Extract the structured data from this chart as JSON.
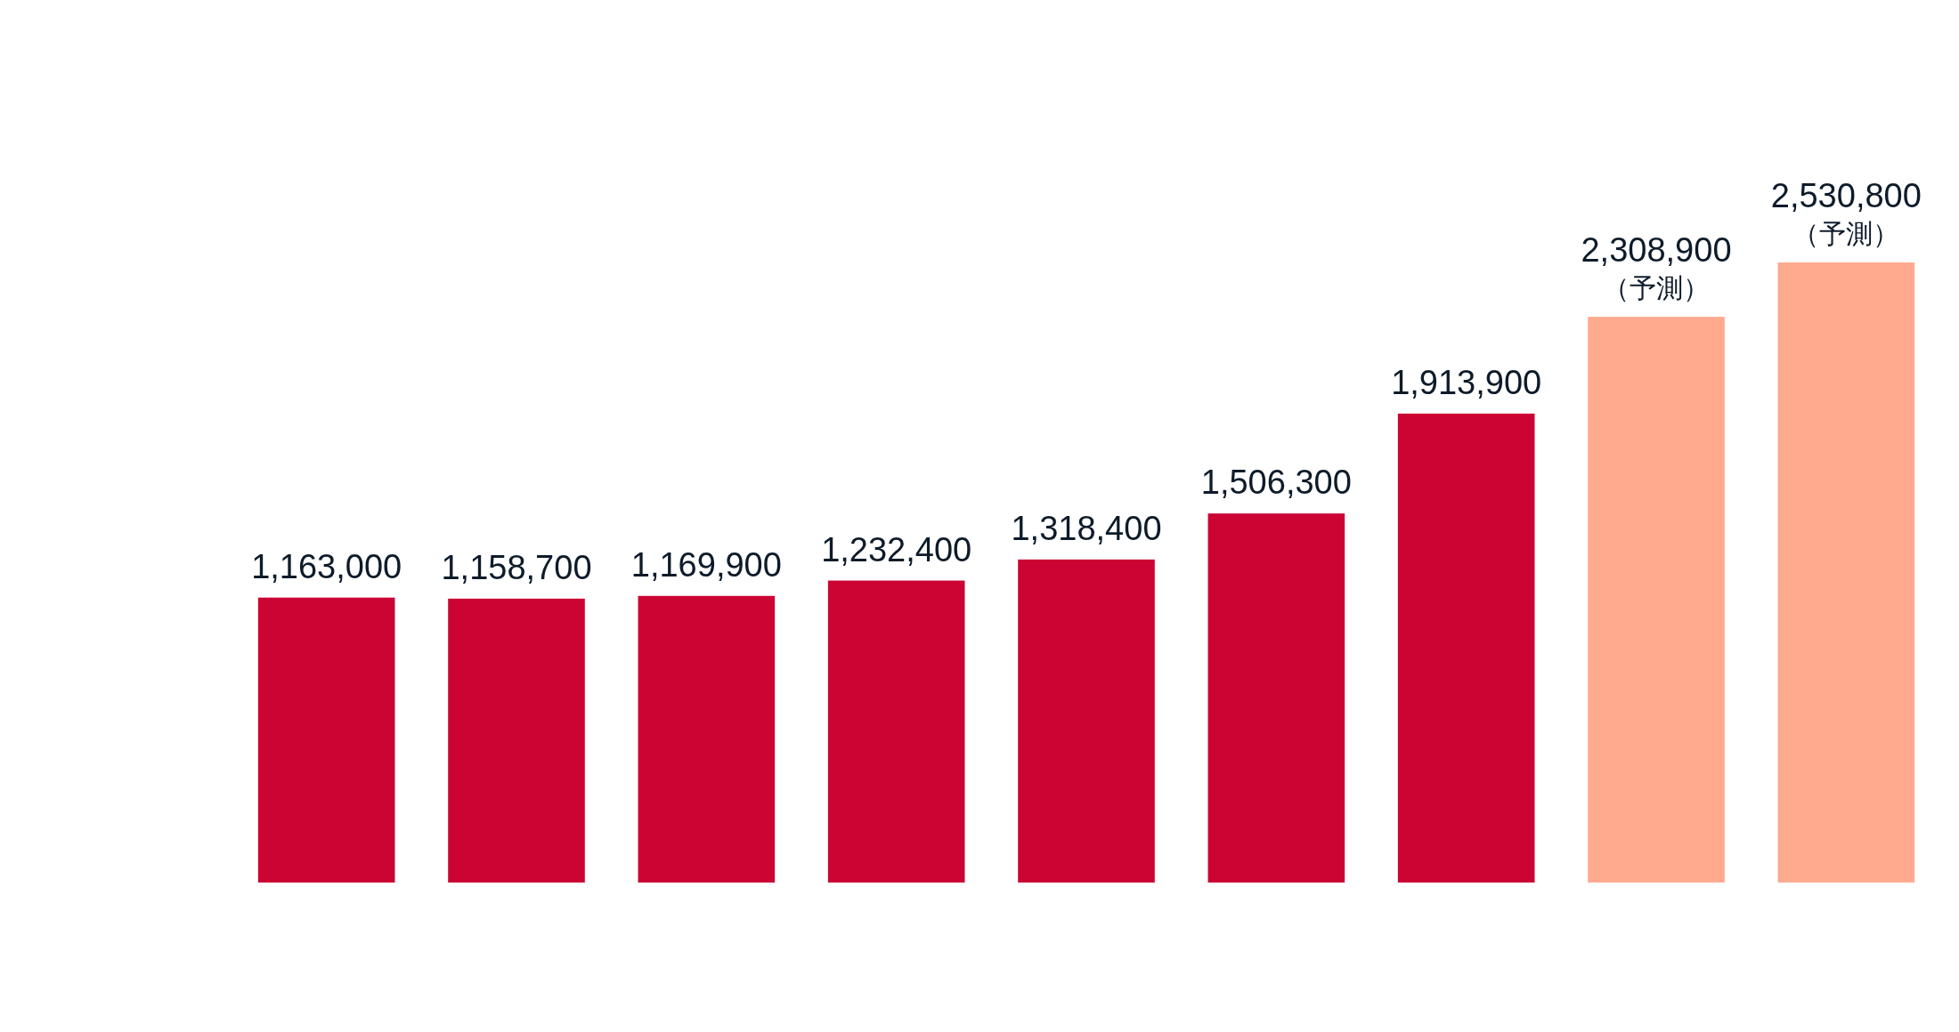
{
  "chart_data": {
    "type": "bar",
    "categories": [
      null,
      null,
      null,
      null,
      null,
      null,
      null,
      null,
      null
    ],
    "values": [
      1163000,
      1158700,
      1169900,
      1232400,
      1318400,
      1506300,
      1913900,
      2308900,
      2530800
    ],
    "colors": [
      "#cc0433",
      "#cc0433",
      "#cc0433",
      "#cc0433",
      "#cc0433",
      "#cc0433",
      "#cc0433",
      "#ffaa8f",
      "#ffaa8f"
    ],
    "value_labels": [
      "1,163,000",
      "1,158,700",
      "1,169,900",
      "1,232,400",
      "1,318,400",
      "1,506,300",
      "1,913,900",
      "2,308,900\n（予測）",
      "2,530,800\n（予測）"
    ]
  }
}
